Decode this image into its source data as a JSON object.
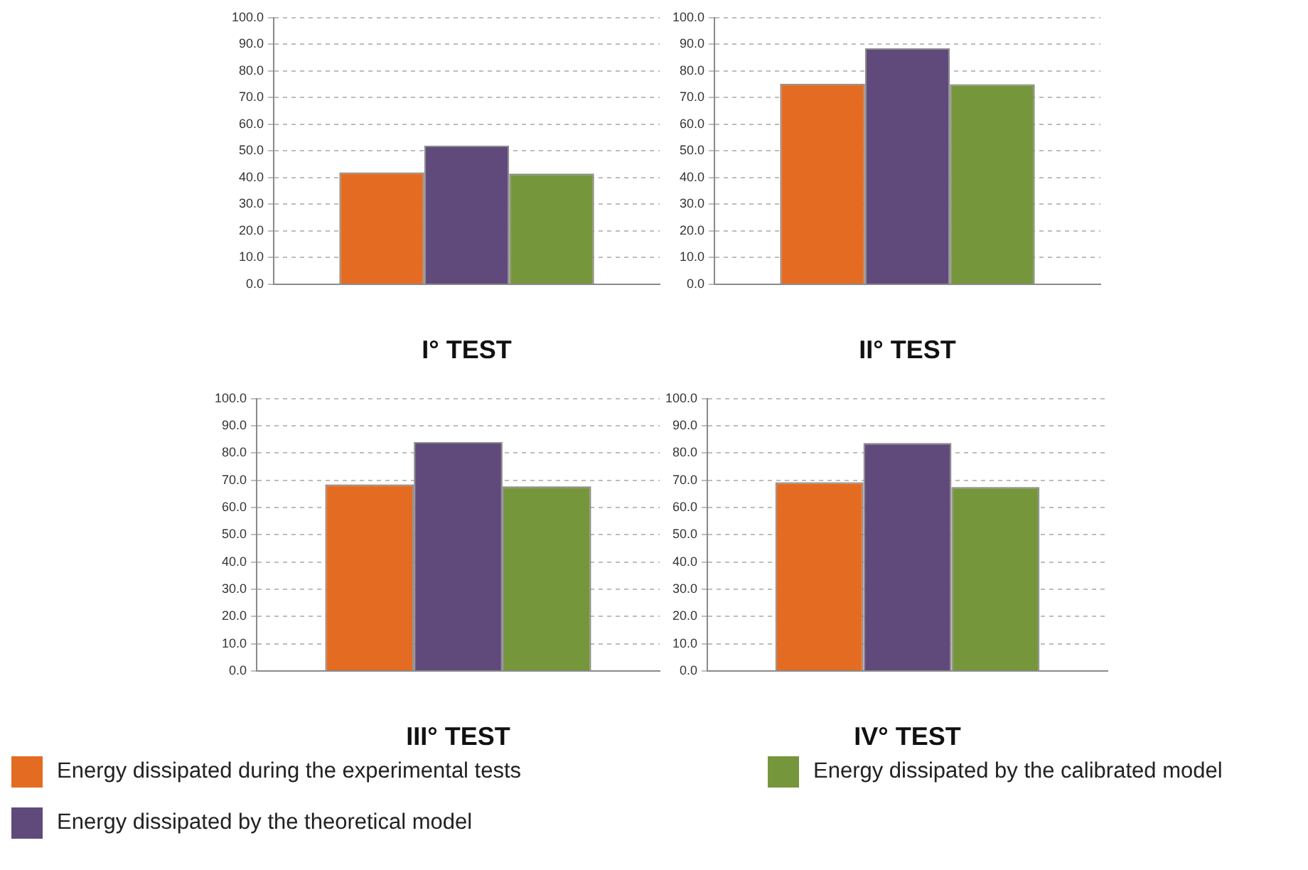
{
  "chart_data": [
    {
      "type": "bar",
      "xlabel": "I° TEST",
      "categories": [
        null
      ],
      "legend": "bottom",
      "grid": "y",
      "ylim": [
        0,
        100
      ],
      "yticks": [
        {
          "value": 0,
          "label": "0.0"
        },
        {
          "value": 10,
          "label": "10.0"
        },
        {
          "value": 20,
          "label": "20.0"
        },
        {
          "value": 30,
          "label": "30.0"
        },
        {
          "value": 40,
          "label": "40.0"
        },
        {
          "value": 50,
          "label": "50.0"
        },
        {
          "value": 60,
          "label": "60.0"
        },
        {
          "value": 70,
          "label": "70.0"
        },
        {
          "value": 80,
          "label": "80.0"
        },
        {
          "value": 90,
          "label": "90.0"
        },
        {
          "value": 100,
          "label": "100.0"
        }
      ],
      "series": [
        {
          "name": "Energy dissipated during the experimental tests",
          "color": "#e46c22",
          "values": [
            42
          ]
        },
        {
          "name": "Energy dissipated by the theoretical model",
          "color": "#604a7b",
          "values": [
            52
          ]
        },
        {
          "name": "Energy dissipated by the calibrated model",
          "color": "#76963c",
          "values": [
            41.5
          ]
        }
      ]
    },
    {
      "type": "bar",
      "xlabel": "II° TEST",
      "categories": [
        null
      ],
      "grid": "y",
      "ylim": [
        0,
        100
      ],
      "yticks": [
        {
          "value": 0,
          "label": "0.0"
        },
        {
          "value": 10,
          "label": "10.0"
        },
        {
          "value": 20,
          "label": "20.0"
        },
        {
          "value": 30,
          "label": "30.0"
        },
        {
          "value": 40,
          "label": "40.0"
        },
        {
          "value": 50,
          "label": "50.0"
        },
        {
          "value": 60,
          "label": "60.0"
        },
        {
          "value": 70,
          "label": "70.0"
        },
        {
          "value": 80,
          "label": "80.0"
        },
        {
          "value": 90,
          "label": "90.0"
        },
        {
          "value": 100,
          "label": "100.0"
        }
      ],
      "series": [
        {
          "color": "#e46c22",
          "values": [
            75.2
          ]
        },
        {
          "color": "#604a7b",
          "values": [
            88.5
          ]
        },
        {
          "color": "#76963c",
          "values": [
            75
          ]
        }
      ]
    },
    {
      "type": "bar",
      "xlabel": "III° TEST",
      "categories": [
        null
      ],
      "grid": "y",
      "ylim": [
        0,
        100
      ],
      "yticks": [
        {
          "value": 0,
          "label": "0.0"
        },
        {
          "value": 10,
          "label": "10.0"
        },
        {
          "value": 20,
          "label": "20.0"
        },
        {
          "value": 30,
          "label": "30.0"
        },
        {
          "value": 40,
          "label": "40.0"
        },
        {
          "value": 50,
          "label": "50.0"
        },
        {
          "value": 60,
          "label": "60.0"
        },
        {
          "value": 70,
          "label": "70.0"
        },
        {
          "value": 80,
          "label": "80.0"
        },
        {
          "value": 90,
          "label": "90.0"
        },
        {
          "value": 100,
          "label": "100.0"
        }
      ],
      "series": [
        {
          "color": "#e46c22",
          "values": [
            68.5
          ]
        },
        {
          "color": "#604a7b",
          "values": [
            84
          ]
        },
        {
          "color": "#76963c",
          "values": [
            67.8
          ]
        }
      ]
    },
    {
      "type": "bar",
      "xlabel": "IV° TEST",
      "categories": [
        null
      ],
      "grid": "y",
      "ylim": [
        0,
        100
      ],
      "yticks": [
        {
          "value": 0,
          "label": "0.0"
        },
        {
          "value": 10,
          "label": "10.0"
        },
        {
          "value": 20,
          "label": "20.0"
        },
        {
          "value": 30,
          "label": "30.0"
        },
        {
          "value": 40,
          "label": "40.0"
        },
        {
          "value": 50,
          "label": "50.0"
        },
        {
          "value": 60,
          "label": "60.0"
        },
        {
          "value": 70,
          "label": "70.0"
        },
        {
          "value": 80,
          "label": "80.0"
        },
        {
          "value": 90,
          "label": "90.0"
        },
        {
          "value": 100,
          "label": "100.0"
        }
      ],
      "series": [
        {
          "color": "#e46c22",
          "values": [
            69.3
          ]
        },
        {
          "color": "#604a7b",
          "values": [
            83.7
          ]
        },
        {
          "color": "#76963c",
          "values": [
            67.5
          ]
        }
      ]
    }
  ]
}
